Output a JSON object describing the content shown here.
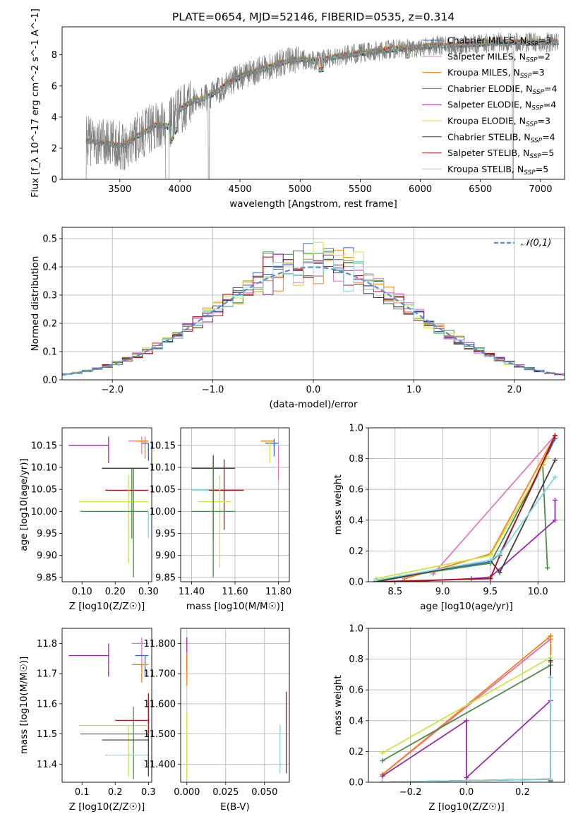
{
  "figure_title": "PLATE=0654, MJD=52146, FIBERID=0535, z=0.314",
  "colors": {
    "Chabrier MILES": "#3366cc",
    "Salpeter MILES": "#e377c2",
    "Kroupa MILES": "#ff7f0e",
    "Chabrier ELODIE": "#4a8a4a",
    "Salpeter ELODIE": "#9b27b0",
    "Kroupa ELODIE": "#c8e640",
    "Chabrier STELIB": "#404040",
    "Salpeter STELIB": "#b01010",
    "Kroupa STELIB": "#80d8d8",
    "data": "#808080",
    "normal": "#5b8bd6"
  },
  "chart_data": [
    {
      "type": "line",
      "title": "PLATE=0654, MJD=52146, FIBERID=0535, z=0.314",
      "xlabel": "wavelength [Angstrom, rest frame]",
      "ylabel": "Flux [f_λ 10^-17 erg cm^-2 s^-1 A^-1]",
      "xlim": [
        3020,
        7200
      ],
      "ylim": [
        0,
        9.8
      ],
      "xticks": [
        3500,
        4000,
        4500,
        5000,
        5500,
        6000,
        6500,
        7000
      ],
      "yticks": [
        0,
        2,
        4,
        6,
        8
      ],
      "legend_position": "top-right",
      "legend": [
        "Chabrier MILES, N_SSP=3",
        "Salpeter MILES, N_SSP=2",
        "Kroupa MILES, N_SSP=3",
        "Chabrier ELODIE, N_SSP=4",
        "Salpeter ELODIE, N_SSP=4",
        "Kroupa ELODIE, N_SSP=3",
        "Chabrier STELIB, N_SSP=4",
        "Salpeter STELIB, N_SSP=5",
        "Kroupa STELIB, N_SSP=5"
      ],
      "continuum": {
        "x": [
          3220,
          3300,
          3400,
          3500,
          3550,
          3600,
          3700,
          3800,
          3900,
          4000,
          4100,
          4200,
          4300,
          4400,
          4500,
          4600,
          4700,
          4800,
          4900,
          5000,
          5100,
          5200,
          5300,
          5400,
          5500,
          5600,
          5700,
          5800,
          5900,
          6000,
          6100,
          6200,
          6300,
          6400,
          6500,
          6600,
          6700,
          6800,
          6900,
          7000,
          7100
        ],
        "y": [
          2.5,
          2.4,
          2.3,
          2.2,
          2.2,
          2.6,
          3.0,
          3.5,
          3.4,
          4.5,
          5.0,
          5.2,
          5.6,
          6.2,
          6.6,
          6.9,
          7.1,
          7.4,
          7.6,
          7.7,
          7.6,
          7.7,
          7.9,
          8.0,
          8.1,
          8.2,
          8.3,
          8.4,
          8.4,
          8.5,
          8.6,
          8.6,
          8.6,
          8.7,
          8.7,
          8.8,
          8.8,
          8.8,
          8.8,
          8.8,
          8.8
        ]
      }
    },
    {
      "type": "line",
      "xlabel": "(data-model)/error",
      "ylabel": "Normed distribution",
      "xlim": [
        -2.5,
        2.5
      ],
      "ylim": [
        0,
        0.54
      ],
      "xticks": [
        -2,
        -1,
        0,
        1,
        2
      ],
      "yticks": [
        0.0,
        0.1,
        0.2,
        0.3,
        0.4,
        0.5
      ],
      "legend_position": "top-right",
      "legend": [
        "𝒩(0,1)"
      ],
      "bin_width": 0.1
    },
    {
      "type": "scatter",
      "xlabel": "Z [log10(Z/Z☉)]",
      "ylabel": "age  [log10(age/yr)]",
      "xlim": [
        0.04,
        0.31
      ],
      "ylim": [
        9.84,
        10.19
      ],
      "xticks": [
        0.1,
        0.2,
        0.3
      ],
      "yticks": [
        9.85,
        9.9,
        9.95,
        10.0,
        10.05,
        10.1,
        10.15
      ],
      "points": [
        {
          "x": 0.18,
          "y": 10.15,
          "xerr": [
            0.12,
            0.0
          ],
          "yerr": [
            0.04,
            0.02
          ],
          "series": "Salpeter ELODIE"
        },
        {
          "x": 0.28,
          "y": 10.16,
          "xerr": [
            0.04,
            0.02
          ],
          "yerr": [
            0.03,
            0.01
          ],
          "series": "Salpeter MILES"
        },
        {
          "x": 0.29,
          "y": 10.16,
          "xerr": [
            0.03,
            0.01
          ],
          "yerr": [
            0.04,
            0.01
          ],
          "series": "Kroupa MILES"
        },
        {
          "x": 0.3,
          "y": 10.155,
          "xerr": [
            0.02,
            0.0
          ],
          "yerr": [
            0.04,
            0.0
          ],
          "series": "Chabrier MILES"
        },
        {
          "x": 0.25,
          "y": 10.098,
          "xerr": [
            0.09,
            0.05
          ],
          "yerr": [
            0.16,
            0.0
          ],
          "series": "Chabrier ELODIE"
        },
        {
          "x": 0.26,
          "y": 10.098,
          "xerr": [
            0.1,
            0.04
          ],
          "yerr": [
            0.0,
            0.0
          ],
          "series": "Chabrier STELIB"
        },
        {
          "x": 0.25,
          "y": 10.048,
          "xerr": [
            0.08,
            0.05
          ],
          "yerr": [
            0.0,
            0.0
          ],
          "series": "Salpeter STELIB"
        },
        {
          "x": 0.24,
          "y": 10.022,
          "xerr": [
            0.15,
            0.06
          ],
          "yerr": [
            0.14,
            0.06
          ],
          "series": "Kroupa ELODIE"
        },
        {
          "x": 0.255,
          "y": 10.0,
          "xerr": [
            0.16,
            0.045
          ],
          "yerr": [
            0.15,
            0.1
          ],
          "series": "Chabrier ELODIE"
        },
        {
          "x": 0.3,
          "y": 10.0,
          "xerr": [
            0.0,
            0.0
          ],
          "yerr": [
            0.06,
            0.0
          ],
          "series": "Kroupa STELIB"
        }
      ]
    },
    {
      "type": "scatter",
      "xlabel": "mass [log10(M/M☉)]",
      "ylabel": "",
      "xlim": [
        11.35,
        11.85
      ],
      "ylim": [
        9.84,
        10.19
      ],
      "xticks": [
        11.4,
        11.6,
        11.8
      ],
      "yticks": [
        9.85,
        9.9,
        9.95,
        10.0,
        10.05,
        10.1,
        10.15
      ],
      "points": [
        {
          "x": 11.76,
          "y": 10.16,
          "xerr": [
            0.04,
            0.02
          ],
          "yerr": [
            0.0,
            0.0
          ],
          "series": "Kroupa MILES"
        },
        {
          "x": 11.78,
          "y": 10.155,
          "xerr": [
            0.04,
            0.02
          ],
          "yerr": [
            0.03,
            0.01
          ],
          "series": "Chabrier MILES"
        },
        {
          "x": 11.76,
          "y": 10.15,
          "xerr": [
            0.0,
            0.0
          ],
          "yerr": [
            0.04,
            0.01
          ],
          "series": "Kroupa ELODIE"
        },
        {
          "x": 11.8,
          "y": 10.15,
          "xerr": [
            0.0,
            0.0
          ],
          "yerr": [
            0.08,
            0.0
          ],
          "series": "Salpeter MILES"
        },
        {
          "x": 11.5,
          "y": 10.098,
          "xerr": [
            0.1,
            0.1
          ],
          "yerr": [
            0.16,
            0.03
          ],
          "series": "Chabrier STELIB"
        },
        {
          "x": 11.55,
          "y": 10.048,
          "xerr": [
            0.08,
            0.09
          ],
          "yerr": [
            0.09,
            0.07
          ],
          "series": "Salpeter STELIB"
        },
        {
          "x": 11.48,
          "y": 10.048,
          "xerr": [
            0.08,
            0.0
          ],
          "yerr": [
            0.0,
            0.0
          ],
          "series": "Kroupa STELIB"
        },
        {
          "x": 11.53,
          "y": 10.022,
          "xerr": [
            0.1,
            0.05
          ],
          "yerr": [
            0.15,
            0.06
          ],
          "series": "Kroupa ELODIE"
        },
        {
          "x": 11.5,
          "y": 10.0,
          "xerr": [
            0.1,
            0.1
          ],
          "yerr": [
            0.15,
            0.1
          ],
          "series": "Chabrier ELODIE"
        }
      ]
    },
    {
      "type": "line",
      "xlabel": "age  [log10(age/yr)]",
      "ylabel": "mass weight",
      "xlim": [
        8.22,
        10.28
      ],
      "ylim": [
        0,
        1.0
      ],
      "xticks": [
        8.5,
        9.0,
        9.5,
        10.0
      ],
      "yticks": [
        0.0,
        0.2,
        0.4,
        0.6,
        0.8,
        1.0
      ],
      "series": [
        {
          "name": "Chabrier MILES",
          "x": [
            8.3,
            9.5,
            9.6,
            10.18
          ],
          "y": [
            0.0,
            0.13,
            0.18,
            0.93
          ]
        },
        {
          "name": "Salpeter MILES",
          "x": [
            8.9,
            10.18
          ],
          "y": [
            0.05,
            0.95
          ]
        },
        {
          "name": "Kroupa MILES",
          "x": [
            8.6,
            9.5,
            10.18
          ],
          "y": [
            0.02,
            0.18,
            0.95
          ]
        },
        {
          "name": "Chabrier ELODIE",
          "x": [
            8.3,
            9.5,
            10.05,
            10.1
          ],
          "y": [
            0.01,
            0.12,
            0.76,
            0.09
          ]
        },
        {
          "name": "Salpeter ELODIE",
          "x": [
            8.6,
            9.3,
            9.5,
            10.18,
            10.18
          ],
          "y": [
            0.0,
            0.02,
            0.03,
            0.4,
            0.53
          ]
        },
        {
          "name": "Kroupa ELODIE",
          "x": [
            8.3,
            9.5,
            10.1
          ],
          "y": [
            0.02,
            0.17,
            0.81
          ]
        },
        {
          "name": "Chabrier STELIB",
          "x": [
            8.3,
            9.5,
            9.6,
            10.18
          ],
          "y": [
            0.0,
            0.14,
            0.06,
            0.79
          ]
        },
        {
          "name": "Salpeter STELIB",
          "x": [
            8.3,
            9.5,
            9.6,
            10.18
          ],
          "y": [
            0.0,
            0.02,
            0.17,
            0.95
          ]
        },
        {
          "name": "Kroupa STELIB",
          "x": [
            8.3,
            9.5,
            9.6,
            10.18
          ],
          "y": [
            0.01,
            0.14,
            0.18,
            0.68
          ]
        }
      ]
    },
    {
      "type": "scatter",
      "xlabel": "Z [log10(Z/Z☉)]",
      "ylabel": "mass [log10(M/M☉)]",
      "xlim": [
        0.04,
        0.31
      ],
      "ylim": [
        11.34,
        11.85
      ],
      "xticks": [
        0.1,
        0.2,
        0.3
      ],
      "yticks": [
        11.4,
        11.5,
        11.6,
        11.7,
        11.8
      ],
      "points": [
        {
          "x": 0.18,
          "y": 11.76,
          "xerr": [
            0.12,
            0.0
          ],
          "yerr": [
            0.07,
            0.04
          ],
          "series": "Salpeter ELODIE"
        },
        {
          "x": 0.28,
          "y": 11.8,
          "xerr": [
            0.03,
            0.02
          ],
          "yerr": [
            0.08,
            0.02
          ],
          "series": "Salpeter MILES"
        },
        {
          "x": 0.29,
          "y": 11.76,
          "xerr": [
            0.03,
            0.01
          ],
          "yerr": [
            0.07,
            0.0
          ],
          "series": "Chabrier MILES"
        },
        {
          "x": 0.28,
          "y": 11.73,
          "xerr": [
            0.03,
            0.02
          ],
          "yerr": [
            0.06,
            0.0
          ],
          "series": "Kroupa MILES"
        },
        {
          "x": 0.3,
          "y": 11.545,
          "xerr": [
            0.1,
            0.0
          ],
          "yerr": [
            0.05,
            0.09
          ],
          "series": "Salpeter STELIB"
        },
        {
          "x": 0.24,
          "y": 11.528,
          "xerr": [
            0.15,
            0.06
          ],
          "yerr": [
            0.17,
            0.0
          ],
          "series": "Kroupa ELODIE"
        },
        {
          "x": 0.255,
          "y": 11.5,
          "xerr": [
            0.16,
            0.045
          ],
          "yerr": [
            0.15,
            0.09
          ],
          "series": "Chabrier ELODIE"
        },
        {
          "x": 0.26,
          "y": 11.48,
          "xerr": [
            0.1,
            0.04
          ],
          "yerr": [
            0.0,
            0.0
          ],
          "series": "Chabrier STELIB"
        },
        {
          "x": 0.24,
          "y": 11.43,
          "xerr": [
            0.07,
            0.06
          ],
          "yerr": [
            0.0,
            0.0
          ],
          "series": "Kroupa STELIB"
        },
        {
          "x": 0.3,
          "y": 11.4,
          "xerr": [
            0.0,
            0.0
          ],
          "yerr": [
            0.04,
            0.1
          ],
          "series": "Chabrier STELIB"
        }
      ]
    },
    {
      "type": "scatter",
      "xlabel": "E(B-V)",
      "ylabel": "",
      "xlim": [
        -0.004,
        0.066
      ],
      "ylim": [
        11.34,
        11.85
      ],
      "xticks": [
        0.0,
        0.025,
        0.05
      ],
      "yticks": [
        11.4,
        11.5,
        11.6,
        11.7,
        11.8
      ],
      "points": [
        {
          "x": 0.0,
          "y": 11.78,
          "xerr": [
            0.0,
            0.0
          ],
          "yerr": [
            0.07,
            0.04
          ],
          "series": "Salpeter ELODIE"
        },
        {
          "x": 0.0,
          "y": 11.73,
          "xerr": [
            0.0,
            0.0
          ],
          "yerr": [
            0.07,
            0.04
          ],
          "series": "Kroupa MILES"
        },
        {
          "x": 0.0,
          "y": 11.45,
          "xerr": [
            0.0,
            0.0
          ],
          "yerr": [
            0.1,
            0.12
          ],
          "series": "Kroupa ELODIE"
        },
        {
          "x": 0.06,
          "y": 11.45,
          "xerr": [
            0.0,
            0.0
          ],
          "yerr": [
            0.08,
            0.08
          ],
          "series": "Kroupa STELIB"
        },
        {
          "x": 0.064,
          "y": 11.52,
          "xerr": [
            0.0,
            0.0
          ],
          "yerr": [
            0.15,
            0.12
          ],
          "series": "Salpeter STELIB"
        }
      ]
    },
    {
      "type": "line",
      "xlabel": "Z [log10(Z/Z☉)]",
      "ylabel": "mass weight",
      "xlim": [
        -0.35,
        0.35
      ],
      "ylim": [
        0,
        1.0
      ],
      "xticks": [
        -0.2,
        0.0,
        0.2
      ],
      "yticks": [
        0.0,
        0.2,
        0.4,
        0.6,
        0.8,
        1.0
      ],
      "series": [
        {
          "name": "Chabrier MILES",
          "x": [
            -0.3,
            0.3,
            0.3
          ],
          "y": [
            0.05,
            0.93,
            0.95
          ]
        },
        {
          "name": "Salpeter MILES",
          "x": [
            -0.3,
            0.3
          ],
          "y": [
            0.05,
            0.93
          ]
        },
        {
          "name": "Kroupa MILES",
          "x": [
            -0.3,
            0.3,
            0.3
          ],
          "y": [
            0.05,
            0.95,
            0.78
          ]
        },
        {
          "name": "Chabrier ELODIE",
          "x": [
            -0.3,
            0.3,
            0.3
          ],
          "y": [
            0.14,
            0.76,
            0.01
          ]
        },
        {
          "name": "Salpeter ELODIE",
          "x": [
            -0.3,
            0.0,
            0.0,
            0.3,
            0.3
          ],
          "y": [
            0.04,
            0.4,
            0.03,
            0.53,
            0.0
          ]
        },
        {
          "name": "Kroupa ELODIE",
          "x": [
            -0.3,
            0.3,
            0.3
          ],
          "y": [
            0.19,
            0.81,
            0.0
          ]
        },
        {
          "name": "Chabrier STELIB",
          "x": [
            -0.3,
            0.3,
            0.3
          ],
          "y": [
            0.0,
            0.02,
            0.79
          ]
        },
        {
          "name": "Salpeter STELIB",
          "x": [
            -0.3,
            0.3,
            0.3
          ],
          "y": [
            0.0,
            0.02,
            0.0
          ]
        },
        {
          "name": "Kroupa STELIB",
          "x": [
            -0.3,
            0.3,
            0.3
          ],
          "y": [
            0.0,
            0.02,
            0.68
          ]
        }
      ]
    }
  ]
}
